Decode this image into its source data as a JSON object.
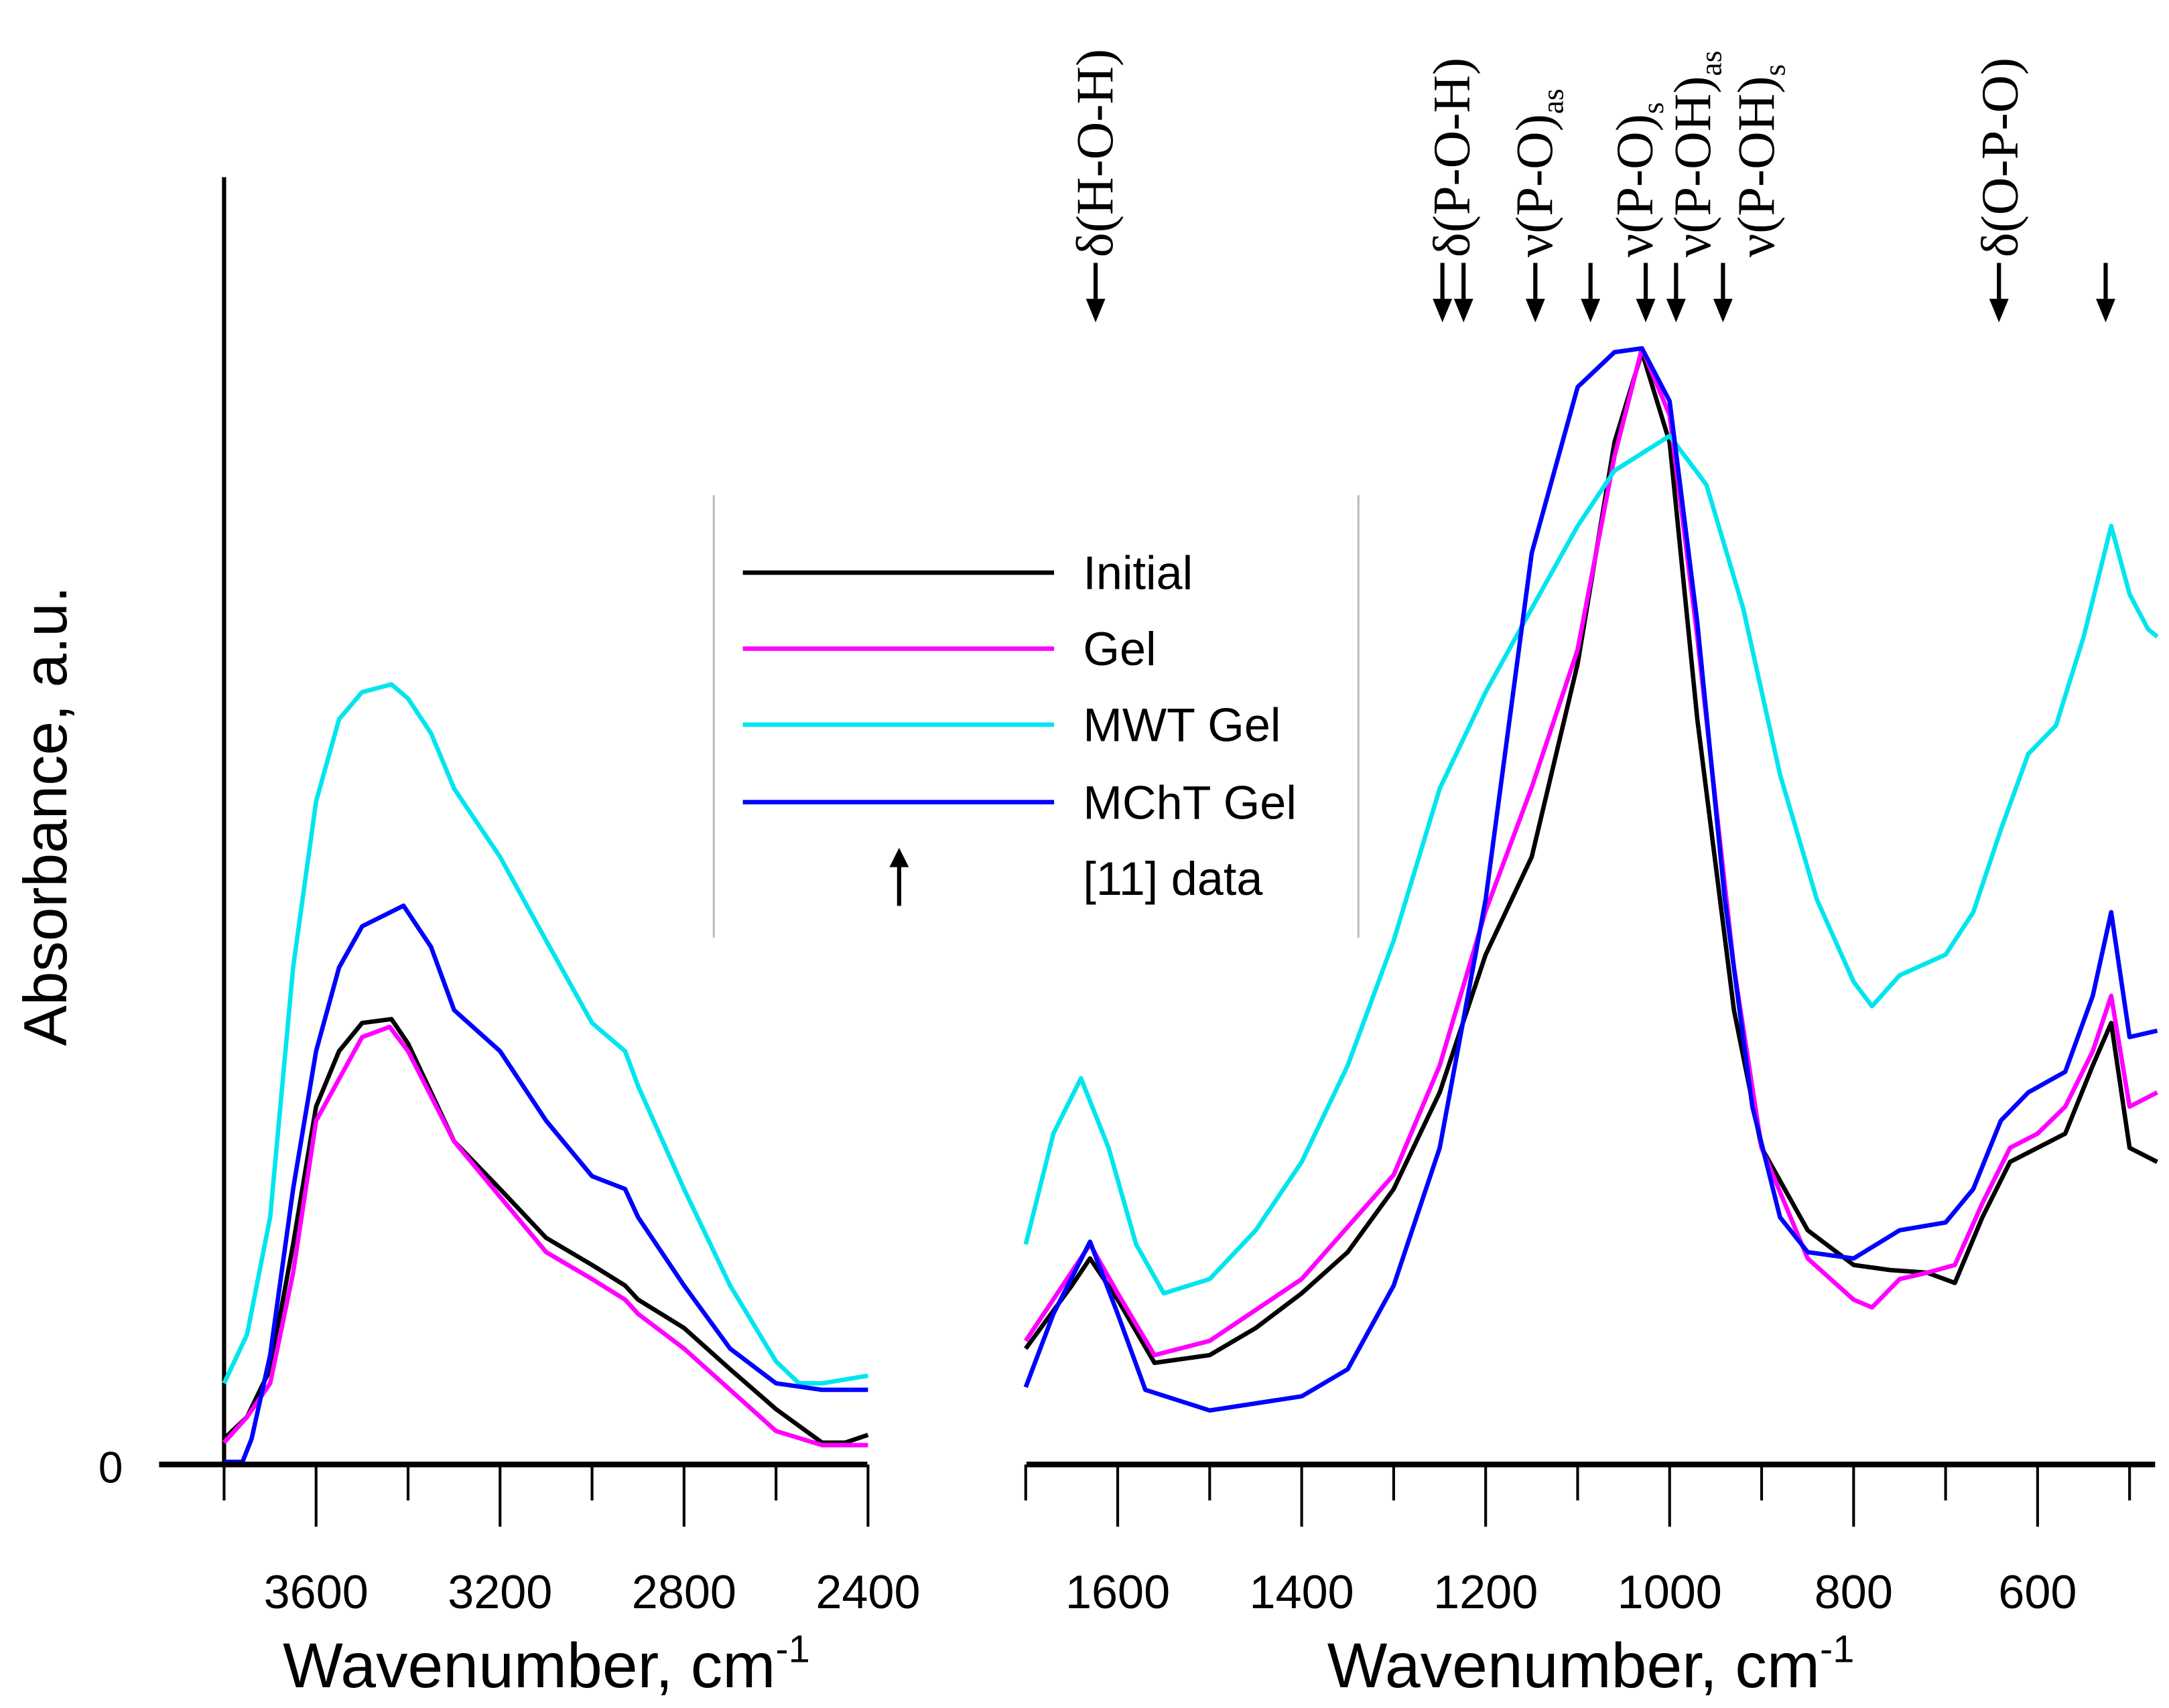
{
  "chart_data": {
    "type": "line",
    "title": "",
    "ylabel": "Absorbance, a.u.",
    "y_tick_labels": [
      "0"
    ],
    "ylim": [
      0,
      1
    ],
    "panels": [
      {
        "name": "high-wavenumber",
        "xlabel": "Wavenumber, cm",
        "xlabel_sup": "-1",
        "xlim": [
          3800,
          2400
        ],
        "x_ticks": [
          3600,
          3200,
          2800,
          2400
        ],
        "x_minor_ticks": [
          3800,
          3400,
          3000,
          2600
        ],
        "series": [
          {
            "name": "Initial",
            "x": [
              3800,
              3750,
              3700,
              3650,
              3600,
              3550,
              3500,
              3436,
              3400,
              3300,
              3200,
              3100,
              3000,
              2928,
              2900,
              2800,
              2700,
              2600,
              2500,
              2450,
              2400
            ],
            "y": [
              0.02,
              0.037,
              0.074,
              0.171,
              0.278,
              0.321,
              0.343,
              0.346,
              0.327,
              0.251,
              0.214,
              0.176,
              0.155,
              0.139,
              0.128,
              0.106,
              0.074,
              0.043,
              0.017,
              0.017,
              0.023
            ]
          },
          {
            "name": "Gel",
            "x": [
              3800,
              3750,
              3700,
              3650,
              3600,
              3500,
              3440,
              3400,
              3300,
              3200,
              3100,
              3000,
              2928,
              2900,
              2800,
              2700,
              2600,
              2500,
              2400
            ],
            "y": [
              0.017,
              0.037,
              0.063,
              0.149,
              0.267,
              0.332,
              0.34,
              0.321,
              0.251,
              0.208,
              0.165,
              0.144,
              0.128,
              0.117,
              0.09,
              0.058,
              0.026,
              0.015,
              0.015
            ]
          },
          {
            "name": "MWT Gel",
            "x": [
              3800,
              3750,
              3700,
              3650,
              3600,
              3550,
              3500,
              3436,
              3400,
              3350,
              3300,
              3200,
              3100,
              3000,
              2928,
              2900,
              2800,
              2700,
              2600,
              2550,
              2500,
              2400
            ],
            "y": [
              0.063,
              0.101,
              0.192,
              0.386,
              0.515,
              0.579,
              0.6,
              0.606,
              0.595,
              0.568,
              0.525,
              0.472,
              0.407,
              0.343,
              0.321,
              0.294,
              0.214,
              0.139,
              0.08,
              0.063,
              0.063,
              0.069
            ]
          },
          {
            "name": "MChT Gel",
            "x": [
              3800,
              3760,
              3740,
              3700,
              3650,
              3600,
              3550,
              3500,
              3410,
              3350,
              3300,
              3200,
              3100,
              3000,
              2928,
              2900,
              2800,
              2700,
              2600,
              2500,
              2400
            ],
            "y": [
              0.002,
              0.002,
              0.02,
              0.085,
              0.214,
              0.321,
              0.386,
              0.418,
              0.434,
              0.402,
              0.353,
              0.321,
              0.267,
              0.224,
              0.214,
              0.192,
              0.139,
              0.09,
              0.063,
              0.058,
              0.058
            ]
          }
        ]
      },
      {
        "name": "low-wavenumber",
        "xlabel": "Wavenumber, cm",
        "xlabel_sup": "-1",
        "xlim": [
          1700,
          470
        ],
        "x_ticks": [
          1600,
          1400,
          1200,
          1000,
          800,
          600
        ],
        "x_minor_ticks": [
          1700,
          1500,
          1300,
          1100,
          900,
          700,
          500
        ],
        "series": [
          {
            "name": "Initial",
            "x": [
              1700,
              1650,
              1630,
              1600,
              1560,
              1500,
              1450,
              1400,
              1350,
              1300,
              1250,
              1200,
              1150,
              1100,
              1060,
              1030,
              1000,
              970,
              930,
              900,
              850,
              800,
              760,
              720,
              690,
              660,
              630,
              600,
              570,
              540,
              520,
              500,
              470
            ],
            "y": [
              0.09,
              0.139,
              0.16,
              0.128,
              0.079,
              0.085,
              0.106,
              0.133,
              0.165,
              0.214,
              0.289,
              0.396,
              0.472,
              0.622,
              0.794,
              0.864,
              0.794,
              0.579,
              0.353,
              0.246,
              0.182,
              0.155,
              0.151,
              0.149,
              0.141,
              0.192,
              0.235,
              0.246,
              0.257,
              0.31,
              0.343,
              0.246,
              0.235
            ]
          },
          {
            "name": "Gel",
            "x": [
              1700,
              1630,
              1600,
              1560,
              1500,
              1400,
              1300,
              1250,
              1200,
              1150,
              1100,
              1060,
              1030,
              1000,
              970,
              930,
              900,
              850,
              800,
              780,
              750,
              720,
              690,
              660,
              630,
              600,
              570,
              540,
              520,
              500,
              470
            ],
            "y": [
              0.096,
              0.171,
              0.133,
              0.085,
              0.096,
              0.144,
              0.225,
              0.31,
              0.43,
              0.526,
              0.633,
              0.783,
              0.867,
              0.815,
              0.643,
              0.386,
              0.246,
              0.16,
              0.128,
              0.122,
              0.144,
              0.149,
              0.155,
              0.203,
              0.246,
              0.257,
              0.278,
              0.321,
              0.364,
              0.278,
              0.289
            ]
          },
          {
            "name": "MWT Gel",
            "x": [
              1700,
              1670,
              1640,
              1610,
              1580,
              1550,
              1500,
              1450,
              1400,
              1350,
              1300,
              1250,
              1200,
              1150,
              1100,
              1060,
              1000,
              960,
              920,
              880,
              840,
              800,
              780,
              750,
              700,
              670,
              640,
              610,
              580,
              550,
              520,
              500,
              480,
              470
            ],
            "y": [
              0.171,
              0.257,
              0.3,
              0.246,
              0.171,
              0.133,
              0.144,
              0.182,
              0.235,
              0.31,
              0.407,
              0.525,
              0.6,
              0.665,
              0.729,
              0.772,
              0.799,
              0.761,
              0.665,
              0.536,
              0.439,
              0.375,
              0.356,
              0.38,
              0.396,
              0.429,
              0.493,
              0.552,
              0.574,
              0.643,
              0.729,
              0.676,
              0.649,
              0.643
            ]
          },
          {
            "name": "MChT Gel",
            "x": [
              1700,
              1670,
              1630,
              1600,
              1570,
              1500,
              1400,
              1350,
              1300,
              1250,
              1200,
              1150,
              1100,
              1060,
              1030,
              1000,
              970,
              940,
              910,
              880,
              850,
              800,
              750,
              700,
              670,
              640,
              610,
              570,
              540,
              520,
              500,
              470
            ],
            "y": [
              0.06,
              0.117,
              0.173,
              0.117,
              0.058,
              0.042,
              0.053,
              0.074,
              0.139,
              0.246,
              0.439,
              0.708,
              0.837,
              0.864,
              0.867,
              0.826,
              0.654,
              0.439,
              0.278,
              0.192,
              0.165,
              0.16,
              0.182,
              0.188,
              0.214,
              0.267,
              0.289,
              0.305,
              0.364,
              0.429,
              0.332,
              0.337
            ]
          }
        ]
      }
    ],
    "series_colors": {
      "Initial": "#000000",
      "Gel": "#ff00ff",
      "MWT Gel": "#00e5ee",
      "MChT Gel": "#0000ff"
    },
    "legend": {
      "placement": "center",
      "entries": [
        "Initial",
        "Gel",
        "MWT Gel",
        "MChT Gel"
      ],
      "marker_entry": "[11] data"
    },
    "reference_arrows_wavenumber": [
      1624,
      1247,
      1224,
      1146,
      1086,
      1026,
      993,
      942,
      642,
      526
    ],
    "annotations": [
      {
        "x": 1624,
        "text": "δ(H-O-H)",
        "sub": ""
      },
      {
        "x": 1236,
        "text": "δ(P-O-H)",
        "sub": ""
      },
      {
        "x": 1146,
        "text": "ν(P-O)",
        "sub": "as"
      },
      {
        "x": 1037,
        "text": "ν(P-O)",
        "sub": "s"
      },
      {
        "x": 974,
        "text": "ν(P-OH)",
        "sub": "as"
      },
      {
        "x": 905,
        "text": "ν(P-OH)",
        "sub": "s"
      },
      {
        "x": 640,
        "text": "δ(O-P-O)",
        "sub": ""
      }
    ]
  }
}
